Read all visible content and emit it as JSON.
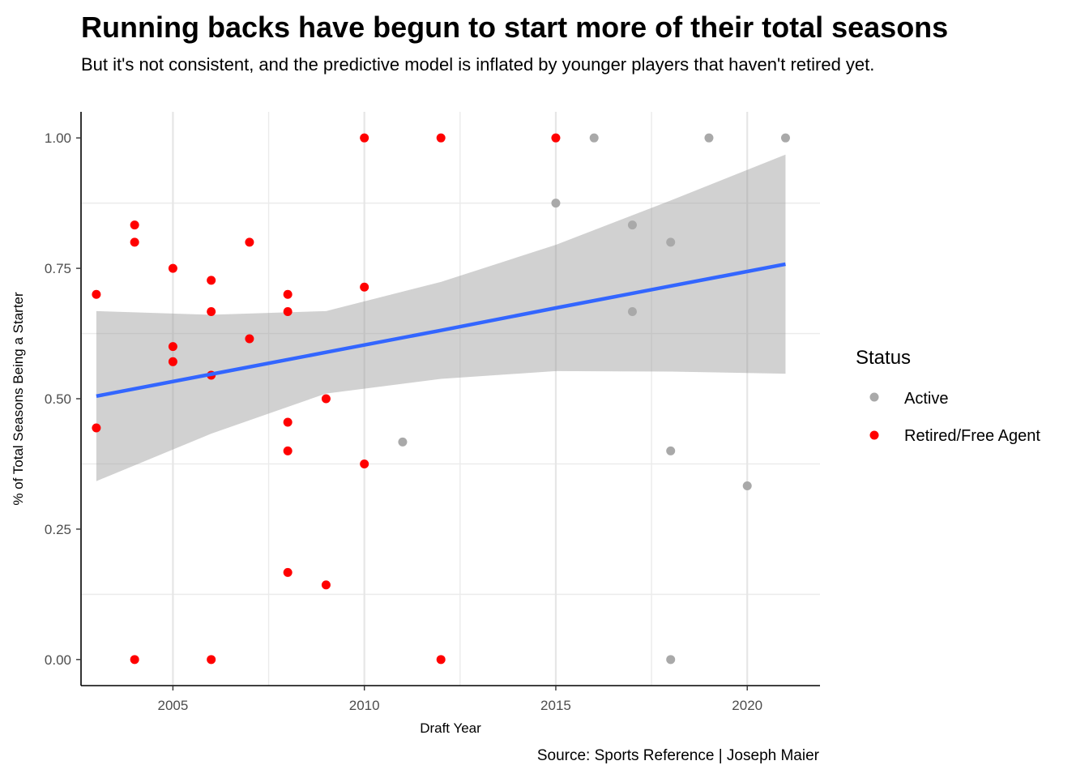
{
  "chart_data": {
    "type": "scatter",
    "title": "Running backs have begun to start more of their total seasons",
    "subtitle": "But it's not consistent, and the predictive model is inflated by younger players that haven't retired yet.",
    "caption": "Source: Sports Reference | Joseph Maier",
    "xlabel": "Draft Year",
    "ylabel": "% of Total Seasons Being a Starter",
    "xlim": [
      2002.6,
      2021.9
    ],
    "ylim": [
      -0.05,
      1.05
    ],
    "xticks": [
      2005,
      2010,
      2015,
      2020
    ],
    "yticks": [
      0.0,
      0.25,
      0.5,
      0.75,
      1.0
    ],
    "ytick_labels": [
      "0.00",
      "0.25",
      "0.50",
      "0.75",
      "1.00"
    ],
    "grid": true,
    "legend": {
      "title": "Status",
      "position": "right"
    },
    "series": [
      {
        "name": "Active",
        "color": "#a9a9a9",
        "points": [
          [
            2011,
            0.417
          ],
          [
            2015,
            0.875
          ],
          [
            2016,
            1.0
          ],
          [
            2017,
            0.833
          ],
          [
            2017,
            0.667
          ],
          [
            2018,
            0.8
          ],
          [
            2018,
            0.4
          ],
          [
            2018,
            0.0
          ],
          [
            2019,
            1.0
          ],
          [
            2020,
            0.333
          ],
          [
            2021,
            1.0
          ]
        ]
      },
      {
        "name": "Retired/Free Agent",
        "color": "#ff0000",
        "points": [
          [
            2003,
            0.7
          ],
          [
            2003,
            0.444
          ],
          [
            2004,
            0.833
          ],
          [
            2004,
            0.8
          ],
          [
            2004,
            0.0
          ],
          [
            2005,
            0.75
          ],
          [
            2005,
            0.6
          ],
          [
            2005,
            0.571
          ],
          [
            2006,
            0.727
          ],
          [
            2006,
            0.667
          ],
          [
            2006,
            0.545
          ],
          [
            2006,
            0.0
          ],
          [
            2007,
            0.8
          ],
          [
            2007,
            0.615
          ],
          [
            2008,
            0.7
          ],
          [
            2008,
            0.667
          ],
          [
            2008,
            0.455
          ],
          [
            2008,
            0.4
          ],
          [
            2008,
            0.167
          ],
          [
            2009,
            0.5
          ],
          [
            2009,
            0.143
          ],
          [
            2010,
            1.0
          ],
          [
            2010,
            0.714
          ],
          [
            2010,
            0.375
          ],
          [
            2012,
            1.0
          ],
          [
            2012,
            0.0
          ],
          [
            2015,
            1.0
          ]
        ]
      }
    ],
    "trend": {
      "method": "lm",
      "color": "#3366ff",
      "band_color": "#999999",
      "x": [
        2003,
        2006,
        2009,
        2012,
        2015,
        2018,
        2021
      ],
      "fit": [
        0.505,
        0.547,
        0.589,
        0.631,
        0.674,
        0.716,
        0.758
      ],
      "lower": [
        0.342,
        0.433,
        0.51,
        0.538,
        0.553,
        0.552,
        0.548
      ],
      "upper": [
        0.668,
        0.661,
        0.668,
        0.724,
        0.795,
        0.88,
        0.968
      ]
    }
  }
}
